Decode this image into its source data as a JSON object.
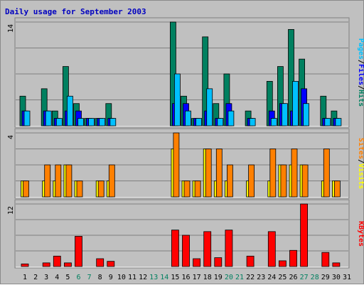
{
  "chart_data": {
    "type": "bar",
    "title": "Daily usage for September 2003",
    "days": [
      "1",
      "2",
      "3",
      "4",
      "5",
      "6",
      "7",
      "8",
      "9",
      "10",
      "11",
      "12",
      "13",
      "14",
      "15",
      "16",
      "17",
      "18",
      "19",
      "20",
      "21",
      "22",
      "23",
      "24",
      "25",
      "26",
      "27",
      "28",
      "29",
      "30",
      "31"
    ],
    "weekend_days": [
      "6",
      "7",
      "13",
      "14",
      "20",
      "21",
      "27",
      "28"
    ],
    "colors": {
      "title": "#0000c0",
      "hits": "#008060",
      "files": "#0000ff",
      "pages": "#00c0ff",
      "visits": "#ffff00",
      "sites": "#ff8000",
      "kbytes": "#ff0000",
      "weekday_label": "#000000",
      "weekend_label": "#008060",
      "panel_bg": "#c0c0c0",
      "gridline": "#808080"
    },
    "panels": [
      {
        "name": "hits-files-pages",
        "ymax_label": "14",
        "ymax": 14,
        "legend": [
          {
            "text": "Pages",
            "color": "#00c0ff"
          },
          {
            "text": "/",
            "color": "#000000"
          },
          {
            "text": "Files",
            "color": "#0000ff"
          },
          {
            "text": "/",
            "color": "#000000"
          },
          {
            "text": "Hits",
            "color": "#008060"
          }
        ],
        "series": [
          {
            "name": "Hits",
            "color": "#008060",
            "values": [
              4,
              0,
              5,
              2,
              8,
              3,
              1,
              1,
              3,
              0,
              0,
              0,
              0,
              0,
              14,
              4,
              1,
              12,
              3,
              7,
              0,
              2,
              0,
              6,
              8,
              13,
              9,
              0,
              4,
              2,
              0
            ]
          },
          {
            "name": "Files",
            "color": "#0000ff",
            "values": [
              2,
              0,
              2,
              1,
              2,
              2,
              1,
              1,
              1,
              0,
              0,
              0,
              0,
              0,
              3,
              3,
              1,
              2,
              1,
              3,
              0,
              1,
              0,
              2,
              3,
              2,
              5,
              0,
              1,
              1,
              0
            ]
          },
          {
            "name": "Pages",
            "color": "#00c0ff",
            "values": [
              2,
              0,
              2,
              1,
              4,
              1,
              1,
              1,
              1,
              0,
              0,
              0,
              0,
              0,
              7,
              2,
              1,
              5,
              1,
              2,
              0,
              1,
              0,
              1,
              3,
              6,
              3,
              0,
              1,
              1,
              0
            ]
          }
        ]
      },
      {
        "name": "visits-sites",
        "ymax_label": "4",
        "ymax": 4,
        "legend": [
          {
            "text": "Sites",
            "color": "#ff8000"
          },
          {
            "text": "/",
            "color": "#000000"
          },
          {
            "text": "Visits",
            "color": "#ffff00"
          }
        ],
        "series": [
          {
            "name": "Visits",
            "color": "#ffff00",
            "values": [
              1,
              0,
              1,
              1,
              2,
              1,
              0,
              1,
              1,
              0,
              0,
              0,
              0,
              0,
              3,
              1,
              1,
              3,
              1,
              1,
              0,
              1,
              0,
              1,
              2,
              2,
              2,
              0,
              1,
              1,
              0
            ]
          },
          {
            "name": "Sites",
            "color": "#ff8000",
            "values": [
              1,
              0,
              2,
              2,
              2,
              1,
              0,
              1,
              2,
              0,
              0,
              0,
              0,
              0,
              4,
              1,
              1,
              3,
              3,
              2,
              0,
              2,
              0,
              3,
              2,
              3,
              2,
              0,
              3,
              1,
              0
            ]
          }
        ]
      },
      {
        "name": "kbytes",
        "ymax_label": "12",
        "ymax": 12,
        "legend": [
          {
            "text": "KBytes",
            "color": "#ff0000"
          }
        ],
        "series": [
          {
            "name": "KBytes",
            "color": "#ff0000",
            "values": [
              0.5,
              0,
              0.7,
              2,
              0.7,
              5.8,
              0,
              1.5,
              1,
              0,
              0,
              0,
              0,
              0,
              7,
              6,
              1.5,
              6.7,
              1.7,
              7,
              0,
              2,
              0,
              6.7,
              1.1,
              3.1,
              12,
              0,
              2.7,
              0.7,
              0
            ]
          }
        ]
      }
    ]
  }
}
